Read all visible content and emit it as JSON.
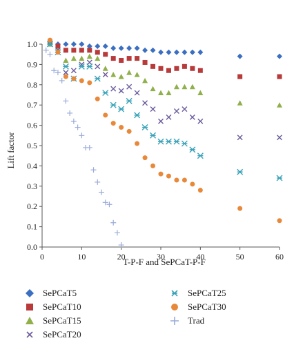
{
  "chart_data": {
    "type": "scatter",
    "xlabel": "T-P-F and SePCaT-P-F",
    "ylabel": "Lift factor",
    "xlim": [
      0,
      60
    ],
    "ylim": [
      0.0,
      1.0
    ],
    "x_ticks": [
      "0",
      "10",
      "20",
      "30",
      "40",
      "50",
      "60"
    ],
    "y_ticks": [
      "0.0",
      "0.1",
      "0.2",
      "0.3",
      "0.4",
      "0.5",
      "0.6",
      "0.7",
      "0.8",
      "0.9",
      "1.0"
    ],
    "grid": false,
    "legend_position": "bottom",
    "series": [
      {
        "name": "SePCaT5",
        "marker": "diamond",
        "color": "#3b6fc1",
        "points": [
          [
            2,
            1.0
          ],
          [
            4,
            1.0
          ],
          [
            6,
            1.0
          ],
          [
            8,
            1.0
          ],
          [
            10,
            1.0
          ],
          [
            12,
            0.99
          ],
          [
            14,
            0.99
          ],
          [
            16,
            0.99
          ],
          [
            18,
            0.98
          ],
          [
            20,
            0.98
          ],
          [
            22,
            0.98
          ],
          [
            24,
            0.98
          ],
          [
            26,
            0.97
          ],
          [
            28,
            0.97
          ],
          [
            30,
            0.96
          ],
          [
            32,
            0.96
          ],
          [
            34,
            0.96
          ],
          [
            36,
            0.96
          ],
          [
            38,
            0.96
          ],
          [
            40,
            0.96
          ],
          [
            50,
            0.94
          ],
          [
            60,
            0.94
          ]
        ]
      },
      {
        "name": "SePCaT10",
        "marker": "square",
        "color": "#b83a3a",
        "points": [
          [
            2,
            1.01
          ],
          [
            4,
            0.99
          ],
          [
            6,
            0.97
          ],
          [
            8,
            0.97
          ],
          [
            10,
            0.97
          ],
          [
            12,
            0.97
          ],
          [
            14,
            0.96
          ],
          [
            16,
            0.95
          ],
          [
            18,
            0.93
          ],
          [
            20,
            0.92
          ],
          [
            22,
            0.93
          ],
          [
            24,
            0.93
          ],
          [
            26,
            0.91
          ],
          [
            28,
            0.89
          ],
          [
            30,
            0.88
          ],
          [
            32,
            0.87
          ],
          [
            34,
            0.88
          ],
          [
            36,
            0.89
          ],
          [
            38,
            0.88
          ],
          [
            40,
            0.87
          ],
          [
            50,
            0.84
          ],
          [
            60,
            0.84
          ]
        ]
      },
      {
        "name": "SePCaT15",
        "marker": "triangle",
        "color": "#8fb04a",
        "points": [
          [
            2,
            1.0
          ],
          [
            4,
            0.97
          ],
          [
            6,
            0.92
          ],
          [
            8,
            0.93
          ],
          [
            10,
            0.93
          ],
          [
            12,
            0.94
          ],
          [
            14,
            0.93
          ],
          [
            16,
            0.88
          ],
          [
            18,
            0.85
          ],
          [
            20,
            0.84
          ],
          [
            22,
            0.86
          ],
          [
            24,
            0.85
          ],
          [
            26,
            0.82
          ],
          [
            28,
            0.78
          ],
          [
            30,
            0.76
          ],
          [
            32,
            0.76
          ],
          [
            34,
            0.79
          ],
          [
            36,
            0.79
          ],
          [
            38,
            0.79
          ],
          [
            40,
            0.76
          ],
          [
            50,
            0.71
          ],
          [
            60,
            0.7
          ]
        ]
      },
      {
        "name": "SePCaT20",
        "marker": "x",
        "color": "#6a5a9c",
        "points": [
          [
            2,
            1.0
          ],
          [
            4,
            0.97
          ],
          [
            6,
            0.86
          ],
          [
            8,
            0.87
          ],
          [
            10,
            0.9
          ],
          [
            12,
            0.91
          ],
          [
            14,
            0.89
          ],
          [
            16,
            0.85
          ],
          [
            18,
            0.78
          ],
          [
            20,
            0.77
          ],
          [
            22,
            0.79
          ],
          [
            24,
            0.76
          ],
          [
            26,
            0.71
          ],
          [
            28,
            0.68
          ],
          [
            30,
            0.62
          ],
          [
            32,
            0.64
          ],
          [
            34,
            0.67
          ],
          [
            36,
            0.68
          ],
          [
            38,
            0.64
          ],
          [
            40,
            0.62
          ],
          [
            50,
            0.54
          ],
          [
            60,
            0.54
          ]
        ]
      },
      {
        "name": "SePCaT25",
        "marker": "asterisk",
        "color": "#3aa2b8",
        "points": [
          [
            2,
            1.0
          ],
          [
            4,
            0.96
          ],
          [
            6,
            0.89
          ],
          [
            8,
            0.83
          ],
          [
            10,
            0.89
          ],
          [
            12,
            0.89
          ],
          [
            14,
            0.83
          ],
          [
            16,
            0.76
          ],
          [
            18,
            0.7
          ],
          [
            20,
            0.68
          ],
          [
            22,
            0.72
          ],
          [
            24,
            0.65
          ],
          [
            26,
            0.59
          ],
          [
            28,
            0.55
          ],
          [
            30,
            0.52
          ],
          [
            32,
            0.52
          ],
          [
            34,
            0.52
          ],
          [
            36,
            0.51
          ],
          [
            38,
            0.48
          ],
          [
            40,
            0.45
          ],
          [
            50,
            0.37
          ],
          [
            60,
            0.34
          ]
        ]
      },
      {
        "name": "SePCaT30",
        "marker": "circle",
        "color": "#e8893a",
        "points": [
          [
            2,
            1.02
          ],
          [
            4,
            0.96
          ],
          [
            6,
            0.84
          ],
          [
            8,
            0.83
          ],
          [
            10,
            0.82
          ],
          [
            12,
            0.81
          ],
          [
            14,
            0.73
          ],
          [
            16,
            0.65
          ],
          [
            18,
            0.61
          ],
          [
            20,
            0.59
          ],
          [
            22,
            0.57
          ],
          [
            24,
            0.51
          ],
          [
            26,
            0.44
          ],
          [
            28,
            0.4
          ],
          [
            30,
            0.36
          ],
          [
            32,
            0.35
          ],
          [
            34,
            0.33
          ],
          [
            36,
            0.33
          ],
          [
            38,
            0.31
          ],
          [
            40,
            0.28
          ],
          [
            50,
            0.19
          ],
          [
            60,
            0.13
          ]
        ]
      },
      {
        "name": "Trad",
        "marker": "plus",
        "color": "#9aabd8",
        "points": [
          [
            1,
            0.97
          ],
          [
            2,
            0.95
          ],
          [
            3,
            0.87
          ],
          [
            4,
            0.86
          ],
          [
            5,
            0.82
          ],
          [
            6,
            0.72
          ],
          [
            7,
            0.66
          ],
          [
            8,
            0.62
          ],
          [
            9,
            0.59
          ],
          [
            10,
            0.55
          ],
          [
            11,
            0.49
          ],
          [
            12,
            0.49
          ],
          [
            13,
            0.38
          ],
          [
            14,
            0.32
          ],
          [
            15,
            0.27
          ],
          [
            16,
            0.22
          ],
          [
            17,
            0.21
          ],
          [
            18,
            0.12
          ],
          [
            19,
            0.07
          ],
          [
            20,
            0.01
          ]
        ]
      }
    ]
  },
  "legend": {
    "items": [
      "SePCaT5",
      "SePCaT10",
      "SePCaT15",
      "SePCaT20",
      "SePCaT25",
      "SePCaT30",
      "Trad"
    ]
  }
}
